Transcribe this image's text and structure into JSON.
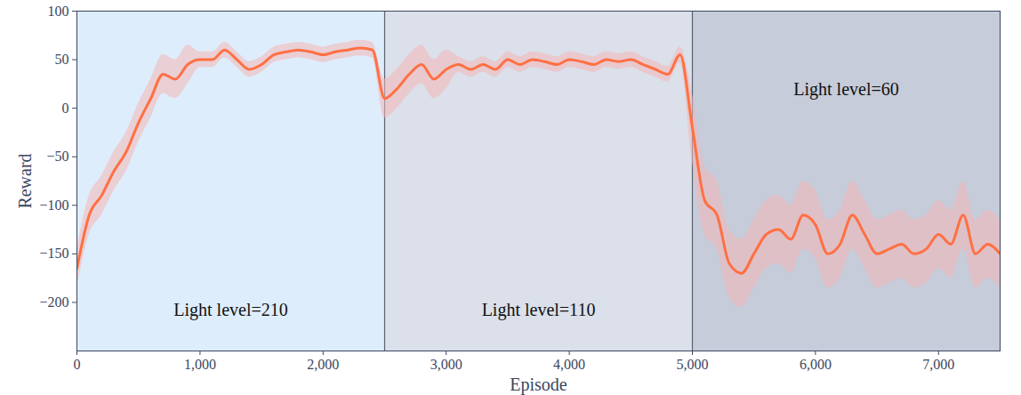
{
  "chart_data": {
    "type": "line",
    "x_label": "Episode",
    "y_label": "Reward",
    "xlim": [
      0,
      7500
    ],
    "ylim": [
      -250,
      100
    ],
    "xticks": [
      0,
      1000,
      2000,
      3000,
      4000,
      5000,
      6000,
      7000
    ],
    "yticks": [
      -200,
      -150,
      -100,
      -50,
      0,
      50,
      100
    ],
    "regions": [
      {
        "x0": 0,
        "x1": 2500,
        "label": "Light level=210",
        "color": "#deedfb"
      },
      {
        "x0": 2500,
        "x1": 5000,
        "label": "Light level=110",
        "color": "#dbe0ea"
      },
      {
        "x0": 5000,
        "x1": 7500,
        "label": "Light level=60",
        "color": "#c6ccd9"
      }
    ],
    "x": [
      0,
      100,
      200,
      300,
      400,
      500,
      600,
      700,
      800,
      900,
      1000,
      1100,
      1200,
      1300,
      1400,
      1500,
      1600,
      1700,
      1800,
      1900,
      2000,
      2100,
      2200,
      2300,
      2400,
      2500,
      2600,
      2700,
      2800,
      2900,
      3000,
      3100,
      3200,
      3300,
      3400,
      3500,
      3600,
      3700,
      3800,
      3900,
      4000,
      4100,
      4200,
      4300,
      4400,
      4500,
      4600,
      4700,
      4800,
      4900,
      5000,
      5100,
      5200,
      5300,
      5400,
      5500,
      5600,
      5700,
      5800,
      5900,
      6000,
      6100,
      6200,
      6300,
      6400,
      6500,
      6600,
      6700,
      6800,
      6900,
      7000,
      7100,
      7200,
      7300,
      7400,
      7500
    ],
    "series": [
      {
        "color": "#ff7043",
        "band_color": "#f4b6b6",
        "values": [
          -165,
          -110,
          -90,
          -65,
          -45,
          -15,
          10,
          35,
          30,
          45,
          50,
          50,
          60,
          50,
          40,
          45,
          55,
          58,
          60,
          58,
          55,
          58,
          60,
          62,
          60,
          10,
          20,
          35,
          45,
          30,
          40,
          45,
          40,
          45,
          40,
          50,
          45,
          50,
          48,
          45,
          50,
          48,
          45,
          50,
          48,
          50,
          45,
          40,
          35,
          55,
          -20,
          -95,
          -110,
          -160,
          -170,
          -150,
          -130,
          -125,
          -135,
          -110,
          -120,
          -150,
          -140,
          -110,
          -130,
          -150,
          -145,
          -140,
          -150,
          -145,
          -130,
          -140,
          -110,
          -150,
          -140,
          -150
        ],
        "lower": [
          -185,
          -130,
          -110,
          -85,
          -65,
          -35,
          -10,
          15,
          10,
          25,
          42,
          42,
          52,
          42,
          32,
          37,
          47,
          50,
          52,
          50,
          47,
          50,
          52,
          54,
          52,
          -10,
          0,
          15,
          25,
          10,
          20,
          37,
          32,
          37,
          32,
          42,
          37,
          42,
          40,
          37,
          42,
          40,
          37,
          42,
          40,
          42,
          37,
          32,
          27,
          47,
          -55,
          -130,
          -145,
          -195,
          -205,
          -185,
          -165,
          -160,
          -170,
          -145,
          -155,
          -185,
          -175,
          -145,
          -165,
          -185,
          -180,
          -175,
          -185,
          -180,
          -165,
          -175,
          -145,
          -185,
          -175,
          -185
        ],
        "upper": [
          -145,
          -90,
          -70,
          -45,
          -25,
          5,
          30,
          55,
          50,
          65,
          58,
          58,
          68,
          58,
          48,
          53,
          63,
          66,
          68,
          66,
          63,
          66,
          68,
          70,
          68,
          30,
          40,
          55,
          65,
          50,
          60,
          53,
          48,
          53,
          48,
          58,
          53,
          58,
          56,
          53,
          58,
          56,
          53,
          58,
          56,
          58,
          53,
          48,
          43,
          63,
          15,
          -60,
          -75,
          -125,
          -135,
          -115,
          -95,
          -90,
          -100,
          -75,
          -85,
          -115,
          -105,
          -75,
          -95,
          -115,
          -110,
          -105,
          -115,
          -110,
          -95,
          -105,
          -75,
          -115,
          -105,
          -115
        ]
      }
    ]
  }
}
